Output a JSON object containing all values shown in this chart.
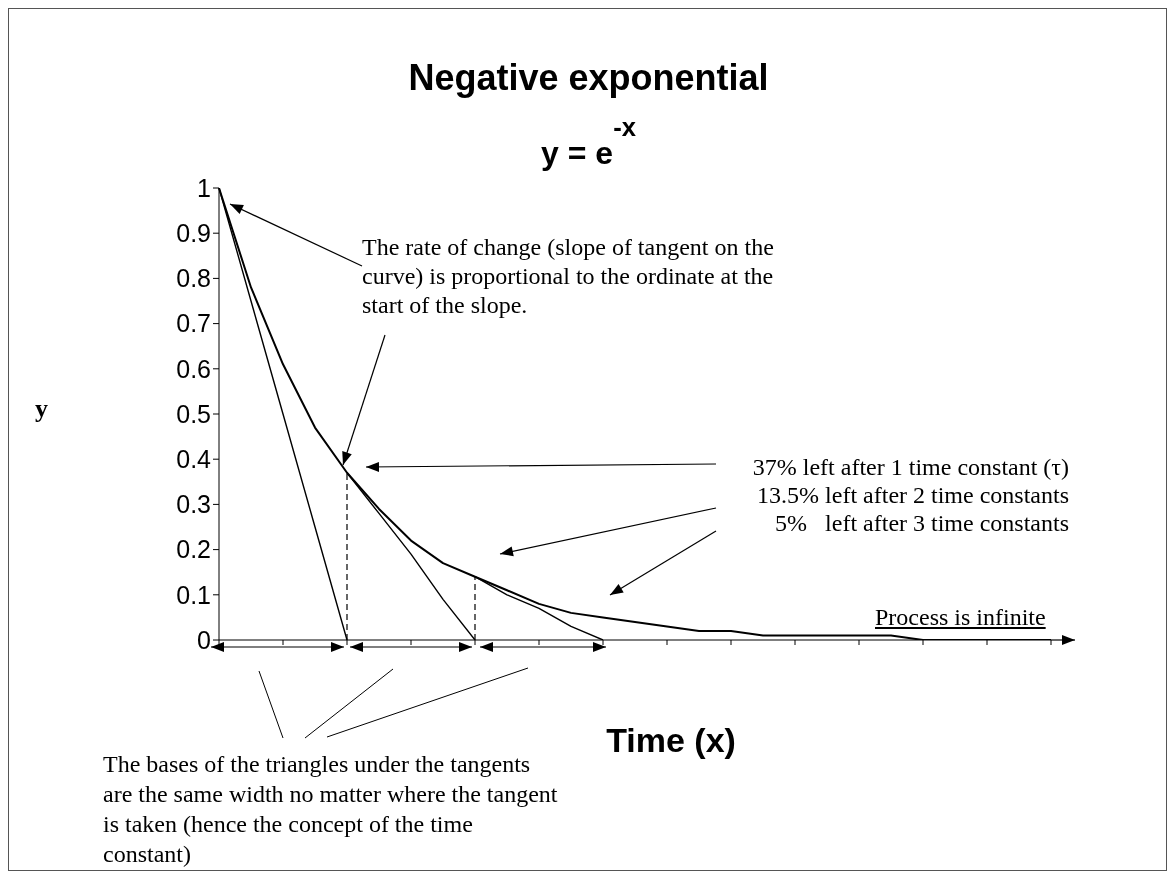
{
  "chart_data": {
    "type": "line",
    "title": "Negative exponential",
    "subtitle": "y = e$^{-x}$",
    "xlabel": "Time (x)",
    "ylabel": "y",
    "categories": [
      null,
      null,
      null,
      null,
      null,
      null,
      null,
      null,
      null,
      null,
      null,
      null,
      null,
      null,
      null,
      null,
      null,
      null,
      null,
      null,
      null,
      null,
      null,
      null,
      null,
      null,
      null
    ],
    "series": [
      {
        "color": "#000000",
        "values": [
          1,
          0.78,
          0.61,
          0.47,
          0.37,
          0.29,
          0.22,
          0.17,
          0.14,
          0.11,
          0.08,
          0.06,
          0.05,
          0.04,
          0.03,
          0.02,
          0.02,
          0.01,
          0.01,
          0.01,
          0.01,
          0.01,
          0,
          0,
          0,
          0,
          0
        ]
      },
      {
        "color": "#000000",
        "values": [
          1,
          0.75,
          0.5,
          0.25,
          0,
          null,
          null,
          null,
          null,
          null,
          null,
          null,
          null,
          null,
          null,
          null,
          null,
          null,
          null,
          null,
          null,
          null,
          null,
          null,
          null,
          null,
          null
        ]
      },
      {
        "color": "#000000",
        "values": [
          null,
          null,
          null,
          null,
          0.37,
          0.28,
          0.19,
          0.09,
          0,
          null,
          null,
          null,
          null,
          null,
          null,
          null,
          null,
          null,
          null,
          null,
          null,
          null,
          null,
          null,
          null,
          null,
          null
        ]
      },
      {
        "color": "#000000",
        "values": [
          null,
          null,
          null,
          null,
          null,
          null,
          null,
          null,
          0.14,
          0.1,
          0.07,
          0.03,
          0,
          null,
          null,
          null,
          null,
          null,
          null,
          null,
          null,
          null,
          null,
          null,
          null,
          null,
          null
        ]
      }
    ],
    "ylim": [
      0,
      1
    ],
    "yticks": [
      0,
      0.1,
      0.2,
      0.3,
      0.4,
      0.5,
      0.6,
      0.7,
      0.8,
      0.9,
      1
    ],
    "tick_labels": "y",
    "grid": false,
    "legend": false,
    "marker": "none",
    "line_style": "solid",
    "annotations": [
      "The rate of change (slope of tangent on the curve) is proportional to the ordinate at the start of the slope.",
      "37% left after 1 time constant (τ)",
      "13.5% left after 2 time constants",
      "5%   left after 3 time constants",
      "Process is infinite",
      "The bases of the triangles under the tangents are the same width no matter where the tangent is taken (hence the concept of the time constant)"
    ]
  }
}
